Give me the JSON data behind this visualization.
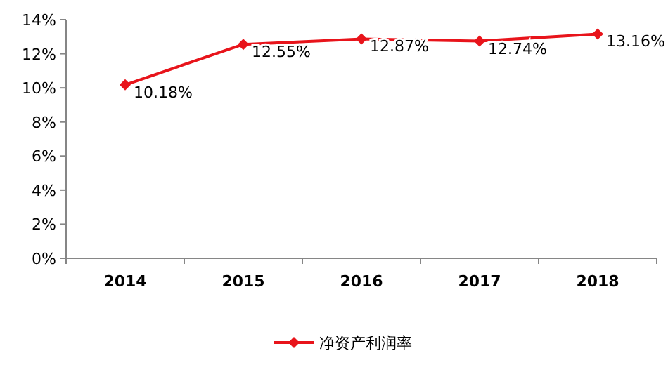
{
  "chart_data": {
    "type": "line",
    "categories": [
      "2014",
      "2015",
      "2016",
      "2017",
      "2018"
    ],
    "series": [
      {
        "name": "净资产利润率",
        "color": "#e8141b",
        "values": [
          10.18,
          12.55,
          12.87,
          12.74,
          13.16
        ],
        "value_labels": [
          "10.18%",
          "12.55%",
          "12.87%",
          "12.74%",
          "13.16%"
        ]
      }
    ],
    "ylim": [
      0,
      14
    ],
    "yticks": [
      {
        "value": 0,
        "label": "0%"
      },
      {
        "value": 2,
        "label": "2%"
      },
      {
        "value": 4,
        "label": "4%"
      },
      {
        "value": 6,
        "label": "6%"
      },
      {
        "value": 8,
        "label": "8%"
      },
      {
        "value": 10,
        "label": "10%"
      },
      {
        "value": 12,
        "label": "12%"
      },
      {
        "value": 14,
        "label": "14%"
      }
    ],
    "marker": "diamond",
    "line_style": "solid",
    "legend": "bottom"
  }
}
